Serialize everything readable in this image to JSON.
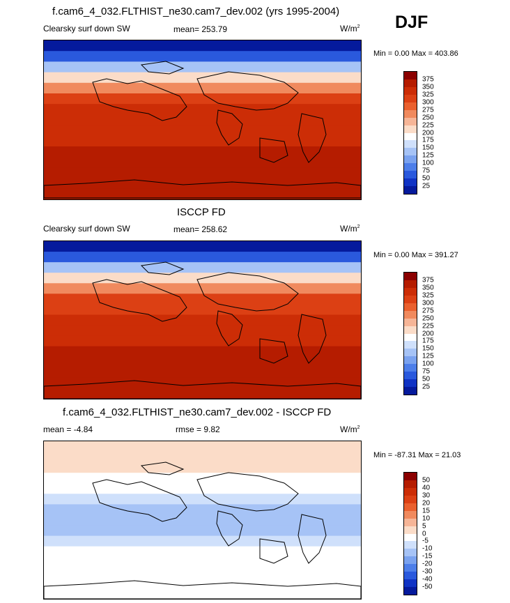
{
  "season": "DJF",
  "panels": [
    {
      "title": "f.cam6_4_032.FLTHIST_ne30.cam7_dev.002 (yrs 1995-2004)",
      "variable": "Clearsky surf down SW",
      "stat": "mean= 253.79",
      "units": "W/m",
      "units_sup": "2",
      "minmax": "Min =    0.00 Max = 403.86"
    },
    {
      "title": "ISCCP FD",
      "variable": "Clearsky surf down SW",
      "stat": "mean= 258.62",
      "units": "W/m",
      "units_sup": "2",
      "minmax": "Min =    0.00 Max = 391.27"
    },
    {
      "title": "f.cam6_4_032.FLTHIST_ne30.cam7_dev.002 - ISCCP FD",
      "variable": "mean =  -4.84",
      "stat": "rmse =    9.82",
      "units": "W/m",
      "units_sup": "2",
      "minmax": "Min = -87.31 Max =  21.03"
    }
  ],
  "colorbars": {
    "absolute": {
      "levels": [
        "375",
        "350",
        "325",
        "300",
        "275",
        "250",
        "225",
        "200",
        "175",
        "150",
        "125",
        "100",
        "75",
        "50",
        "25"
      ],
      "colors": [
        "#8b0000",
        "#b51c00",
        "#cc2d06",
        "#dc4014",
        "#ea602e",
        "#f08a5e",
        "#f6b597",
        "#fbdcc8",
        "#ffffff",
        "#cfe0fb",
        "#a6c3f6",
        "#7aa2ef",
        "#4d7ee9",
        "#2a59dd",
        "#1033c4",
        "#051a9c"
      ]
    },
    "difference": {
      "levels": [
        "50",
        "40",
        "30",
        "20",
        "15",
        "10",
        "5",
        "0",
        "-5",
        "-10",
        "-15",
        "-20",
        "-30",
        "-40",
        "-50"
      ],
      "colors": [
        "#8b0000",
        "#b51c00",
        "#cc2d06",
        "#dc4014",
        "#ea602e",
        "#f08a5e",
        "#f6b597",
        "#fbdcc8",
        "#ffffff",
        "#cfe0fb",
        "#a6c3f6",
        "#7aa2ef",
        "#4d7ee9",
        "#2a59dd",
        "#1033c4",
        "#051a9c"
      ]
    }
  },
  "chart_data": [
    {
      "type": "heatmap",
      "title": "f.cam6_4_032.FLTHIST_ne30.cam7_dev.002 (yrs 1995-2004)",
      "variable": "Clearsky surf down SW",
      "units": "W/m2",
      "mean": 253.79,
      "min": 0.0,
      "max": 403.86,
      "lat_profile": [
        20,
        60,
        140,
        220,
        270,
        305,
        325,
        335,
        340,
        345,
        350,
        355,
        360,
        365,
        370
      ]
    },
    {
      "type": "heatmap",
      "title": "ISCCP FD",
      "variable": "Clearsky surf down SW",
      "units": "W/m2",
      "mean": 258.62,
      "min": 0.0,
      "max": 391.27,
      "lat_profile": [
        15,
        50,
        130,
        215,
        265,
        300,
        320,
        330,
        338,
        345,
        350,
        356,
        362,
        366,
        372
      ]
    },
    {
      "type": "heatmap",
      "title": "f.cam6_4_032.FLTHIST_ne30.cam7_dev.002 - ISCCP FD",
      "units": "W/m2",
      "mean": -4.84,
      "rmse": 9.82,
      "min": -87.31,
      "max": 21.03,
      "lat_profile": [
        3,
        2,
        0,
        -3,
        -5,
        -8,
        -12,
        -15,
        -12,
        -8,
        -5,
        -4,
        -3,
        -2,
        -1
      ]
    }
  ]
}
